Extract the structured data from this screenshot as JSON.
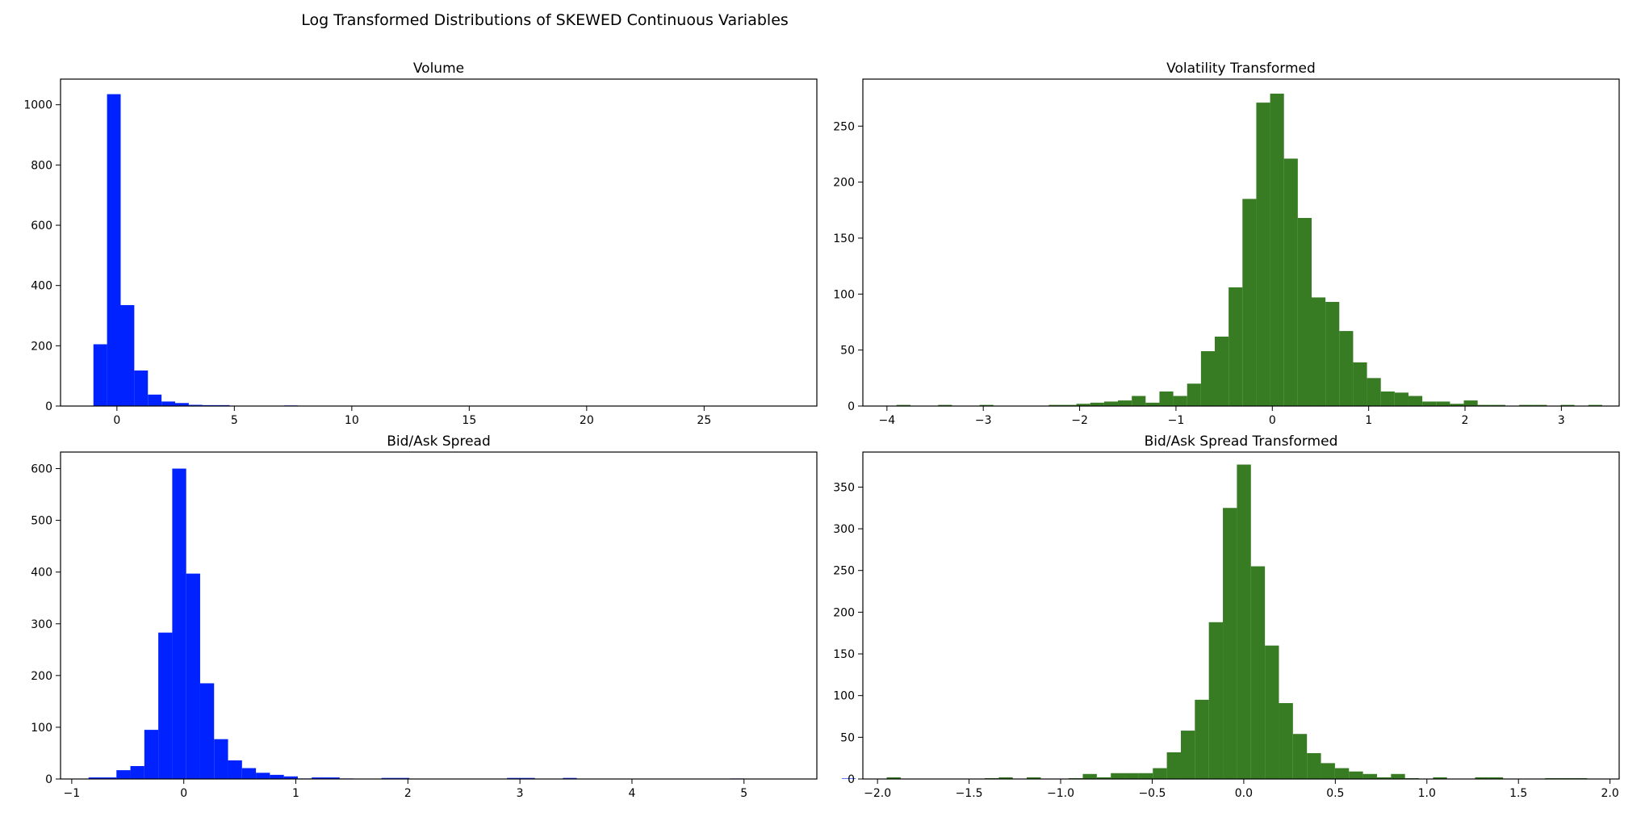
{
  "figure": {
    "suptitle": "Log Transformed Distributions of SKEWED Continuous Variables"
  },
  "chart_data": [
    {
      "type": "bar",
      "title": "Volume",
      "xlabel": "",
      "ylabel": "",
      "color": "#0022ff",
      "xlim": [
        -2.4,
        29.8
      ],
      "ylim": [
        0,
        1085
      ],
      "xticks": [
        0,
        5,
        10,
        15,
        20,
        25
      ],
      "xtick_labels": [
        "0",
        "5",
        "10",
        "15",
        "20",
        "25"
      ],
      "yticks": [
        0,
        200,
        400,
        600,
        800,
        1000
      ],
      "ytick_labels": [
        "0",
        "200",
        "400",
        "600",
        "800",
        "1000"
      ],
      "bin_start": -1.0,
      "bin_width": 0.58,
      "values": [
        205,
        1035,
        335,
        118,
        38,
        15,
        10,
        4,
        3,
        3,
        1,
        0,
        0,
        0,
        2,
        1,
        0,
        0,
        0,
        0,
        0,
        0,
        0,
        0,
        0,
        0,
        0,
        0,
        0,
        0,
        0,
        0,
        0,
        0,
        0,
        0,
        0,
        0,
        0,
        0,
        0,
        0,
        0,
        0,
        0,
        0,
        0,
        0,
        0,
        1
      ]
    },
    {
      "type": "bar",
      "title": "Volatility Transformed",
      "xlabel": "",
      "ylabel": "",
      "color": "#377b23",
      "xlim": [
        -4.25,
        3.6
      ],
      "ylim": [
        0,
        292
      ],
      "xticks": [
        -4,
        -3,
        -2,
        -1,
        0,
        1,
        2,
        3
      ],
      "xtick_labels": [
        "−4",
        "−3",
        "−2",
        "−1",
        "0",
        "1",
        "2",
        "3"
      ],
      "yticks": [
        0,
        50,
        100,
        150,
        200,
        250
      ],
      "ytick_labels": [
        "0",
        "50",
        "100",
        "150",
        "200",
        "250"
      ],
      "bin_start": -3.9,
      "bin_width": 0.1436,
      "values": [
        1,
        0,
        0,
        1,
        0,
        0,
        1,
        0,
        0,
        0,
        0,
        1,
        1,
        2,
        3,
        4,
        5,
        9,
        3,
        13,
        9,
        20,
        49,
        62,
        106,
        185,
        271,
        279,
        221,
        168,
        97,
        93,
        67,
        39,
        25,
        13,
        12,
        9,
        4,
        4,
        2,
        5,
        1,
        1,
        0,
        1,
        1,
        0,
        1,
        0,
        1
      ]
    },
    {
      "type": "bar",
      "title": "Bid/Ask Spread",
      "xlabel": "",
      "ylabel": "",
      "color": "#0022ff",
      "xlim": [
        -1.1,
        5.65
      ],
      "ylim": [
        0,
        632
      ],
      "xticks": [
        -1,
        0,
        1,
        2,
        3,
        4,
        5
      ],
      "xtick_labels": [
        "−1",
        "0",
        "1",
        "2",
        "3",
        "4",
        "5"
      ],
      "yticks": [
        0,
        100,
        200,
        300,
        400,
        500,
        600
      ],
      "ytick_labels": [
        "0",
        "100",
        "200",
        "300",
        "400",
        "500",
        "600"
      ],
      "bin_start": -0.85,
      "bin_width": 0.1245,
      "values": [
        3,
        3,
        17,
        25,
        95,
        283,
        600,
        397,
        185,
        77,
        36,
        21,
        12,
        8,
        5,
        1,
        3,
        3,
        1,
        0,
        0,
        2,
        2,
        0,
        0,
        0,
        0,
        0,
        0,
        0,
        2,
        2,
        0,
        0,
        2,
        0,
        0,
        0,
        0,
        0,
        0,
        0,
        0,
        0,
        0,
        0,
        1,
        0,
        0,
        0,
        0,
        0,
        0,
        0,
        1
      ]
    },
    {
      "type": "bar",
      "title": "Bid/Ask Spread Transformed",
      "xlabel": "",
      "ylabel": "",
      "color": "#377b23",
      "xlim": [
        -2.08,
        2.05
      ],
      "ylim": [
        0,
        392
      ],
      "xticks": [
        -2.0,
        -1.5,
        -1.0,
        -0.5,
        0.0,
        0.5,
        1.0,
        1.5,
        2.0
      ],
      "xtick_labels": [
        "−2.0",
        "−1.5",
        "−1.0",
        "−0.5",
        "0.0",
        "0.5",
        "1.0",
        "1.5",
        "2.0"
      ],
      "yticks": [
        0,
        50,
        100,
        150,
        200,
        250,
        300,
        350
      ],
      "ytick_labels": [
        "0",
        "50",
        "100",
        "150",
        "200",
        "250",
        "300",
        "350"
      ],
      "bin_start": -1.95,
      "bin_width": 0.0765,
      "values": [
        2,
        0,
        0,
        0,
        0,
        0,
        0,
        1,
        2,
        0,
        2,
        0,
        0,
        1,
        6,
        2,
        7,
        7,
        7,
        13,
        32,
        58,
        95,
        188,
        325,
        377,
        255,
        160,
        91,
        54,
        31,
        19,
        13,
        9,
        6,
        2,
        6,
        1,
        0,
        2,
        0,
        0,
        2,
        2,
        0,
        0,
        0,
        1,
        1,
        1
      ]
    }
  ]
}
